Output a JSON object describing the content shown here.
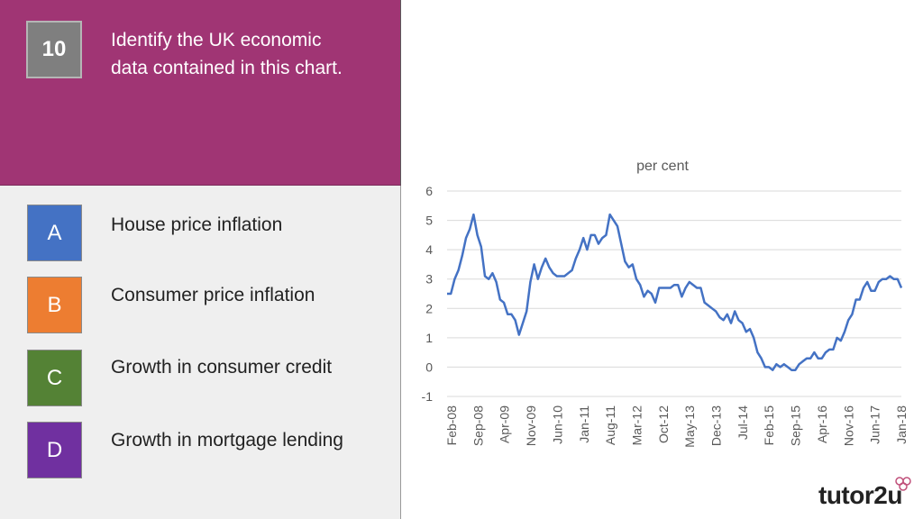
{
  "question": {
    "number": "10",
    "text": "Identify the UK economic data contained in this chart."
  },
  "options": [
    {
      "letter": "A",
      "label": "House price inflation",
      "color": "#4472c4"
    },
    {
      "letter": "B",
      "label": "Consumer price inflation",
      "color": "#ed7d31"
    },
    {
      "letter": "C",
      "label": "Growth in consumer credit",
      "color": "#548235"
    },
    {
      "letter": "D",
      "label": "Growth in mortgage lending",
      "color": "#7030a0"
    }
  ],
  "brand": {
    "text": "tutor2u"
  },
  "chart_data": {
    "type": "line",
    "title": "per cent",
    "xlabel": "",
    "ylabel": "",
    "ylim": [
      -1,
      6
    ],
    "y_ticks": [
      -1,
      0,
      1,
      2,
      3,
      4,
      5,
      6
    ],
    "x_tick_labels": [
      "Feb-08",
      "Sep-08",
      "Apr-09",
      "Nov-09",
      "Jun-10",
      "Jan-11",
      "Aug-11",
      "Mar-12",
      "Oct-12",
      "May-13",
      "Dec-13",
      "Jul-14",
      "Feb-15",
      "Sep-15",
      "Apr-16",
      "Nov-16",
      "Jun-17",
      "Jan-18"
    ],
    "grid": true,
    "line_color": "#4472c4",
    "series": [
      {
        "name": "",
        "values": [
          2.5,
          2.5,
          3.0,
          3.3,
          3.8,
          4.4,
          4.7,
          5.2,
          4.5,
          4.1,
          3.1,
          3.0,
          3.2,
          2.9,
          2.3,
          2.2,
          1.8,
          1.8,
          1.6,
          1.1,
          1.5,
          1.9,
          2.9,
          3.5,
          3.0,
          3.4,
          3.7,
          3.4,
          3.2,
          3.1,
          3.1,
          3.1,
          3.2,
          3.3,
          3.7,
          4.0,
          4.4,
          4.0,
          4.5,
          4.5,
          4.2,
          4.4,
          4.5,
          5.2,
          5.0,
          4.8,
          4.2,
          3.6,
          3.4,
          3.5,
          3.0,
          2.8,
          2.4,
          2.6,
          2.5,
          2.2,
          2.7,
          2.7,
          2.7,
          2.7,
          2.8,
          2.8,
          2.4,
          2.7,
          2.9,
          2.8,
          2.7,
          2.7,
          2.2,
          2.1,
          2.0,
          1.9,
          1.7,
          1.6,
          1.8,
          1.5,
          1.9,
          1.6,
          1.5,
          1.2,
          1.3,
          1.0,
          0.5,
          0.3,
          0.0,
          0.0,
          -0.1,
          0.1,
          0.0,
          0.1,
          0.0,
          -0.1,
          -0.1,
          0.1,
          0.2,
          0.3,
          0.3,
          0.5,
          0.3,
          0.3,
          0.5,
          0.6,
          0.6,
          1.0,
          0.9,
          1.2,
          1.6,
          1.8,
          2.3,
          2.3,
          2.7,
          2.9,
          2.6,
          2.6,
          2.9,
          3.0,
          3.0,
          3.1,
          3.0,
          3.0,
          2.7
        ]
      }
    ]
  }
}
